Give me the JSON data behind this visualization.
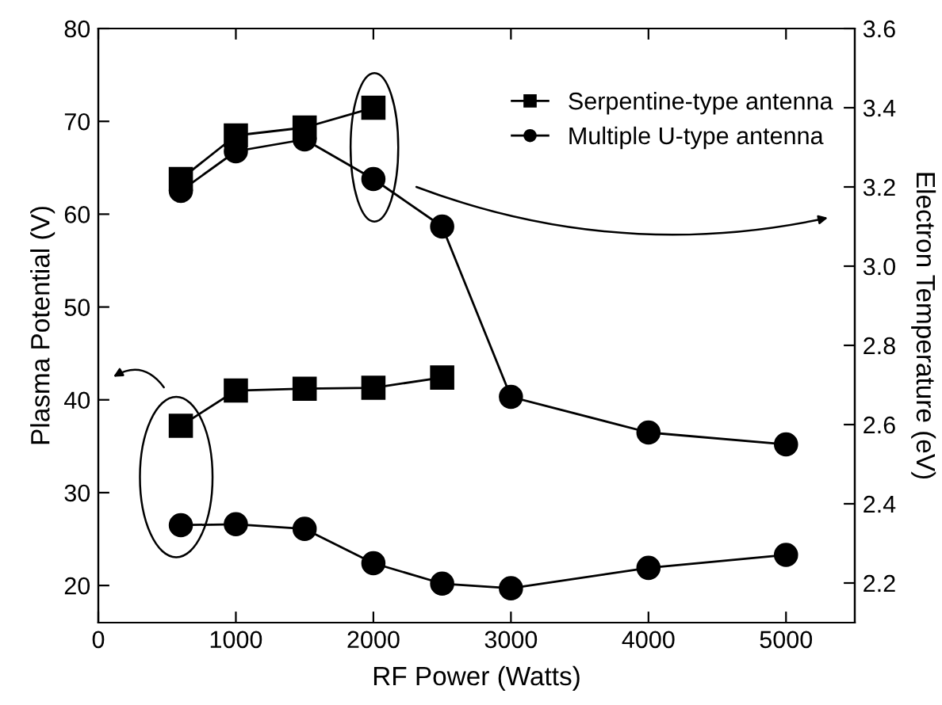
{
  "chart_data": {
    "type": "line",
    "xlabel": "RF Power (Watts)",
    "ylabel": "Plasma Potential (V)",
    "y2label": "Electron Temperature (eV)",
    "xlim": [
      0,
      5500
    ],
    "xticks": [
      0,
      1000,
      2000,
      3000,
      4000,
      5000
    ],
    "ylim": [
      16,
      80
    ],
    "yticks": [
      20,
      30,
      40,
      50,
      60,
      70,
      80
    ],
    "y2lim": [
      2.1,
      3.6
    ],
    "y2ticks": [
      2.2,
      2.4,
      2.6,
      2.8,
      {
        "value": 3,
        "label": "3.0"
      },
      3.2,
      3.4,
      3.6
    ],
    "grid": false,
    "legend": "top right",
    "line_style": "solid",
    "series": [
      {
        "name": "Serpentine-type antenna",
        "color": "#000000",
        "marker": "square",
        "x": [
          600,
          1000,
          1500,
          2000,
          2500
        ],
        "values": [
          37.2,
          41.0,
          41.2,
          41.3,
          42.4
        ]
      },
      {
        "name": "Multiple U-type antenna",
        "color": "#000000",
        "marker": "circle",
        "x": [
          600,
          1000,
          1500,
          2000,
          2500,
          3000,
          4000,
          5000
        ],
        "values": [
          26.5,
          26.6,
          26.1,
          22.4,
          20.2,
          19.7,
          21.9,
          23.3
        ]
      },
      {
        "color": "#000000",
        "marker": "square",
        "axis": "y2",
        "x": [
          600,
          1000,
          1500,
          2000
        ],
        "values": [
          3.22,
          3.33,
          3.35,
          3.4
        ]
      },
      {
        "color": "#000000",
        "marker": "circle",
        "axis": "y2",
        "x": [
          600,
          1000,
          1500,
          2000,
          2500,
          3000,
          4000,
          5000
        ],
        "values": [
          3.19,
          3.29,
          3.32,
          3.22,
          3.1,
          2.67,
          2.58,
          2.55
        ]
      }
    ]
  }
}
